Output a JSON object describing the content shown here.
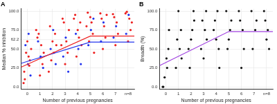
{
  "chart_data": [
    {
      "type": "scatter",
      "title": "A",
      "x_label": "Number of previous pregnancies",
      "y_label": "Median % inhibition",
      "xlim": [
        -0.5,
        8.5
      ],
      "ylim": [
        -3,
        103
      ],
      "xticks": [
        0,
        1,
        2,
        3,
        4,
        5,
        6,
        7,
        {
          "value": 8,
          "label": "n=8"
        }
      ],
      "yticks": [
        {
          "value": 0,
          "label": "0.0"
        },
        {
          "value": 25,
          "label": "25.0"
        },
        {
          "value": 50,
          "label": "50.0"
        },
        62.2,
        {
          "value": 75,
          "label": "75.0"
        },
        {
          "value": 100,
          "label": "100.0"
        }
      ],
      "grid": true,
      "series": [
        {
          "type": "scatter",
          "marker": "circle",
          "color": "#ee2222",
          "x": [
            -0.2,
            0.1,
            0.2,
            -0.1,
            0,
            0.15,
            -0.25,
            0.3,
            -0.3,
            0.8,
            1.1,
            1.2,
            0.9,
            1.0,
            1.3,
            0.7,
            1.8,
            2.1,
            2.2,
            1.9,
            2.0,
            2.3,
            1.7,
            2.8,
            3.1,
            3.2,
            2.9,
            3.0,
            3.3,
            2.7,
            3.8,
            4.1,
            4.2,
            3.9,
            4.0,
            4.3,
            3.7,
            4.8,
            5.1,
            5.2,
            4.9,
            5.0,
            5.3,
            4.7,
            5.8,
            6.1,
            6.2,
            5.9,
            6.0,
            6.3,
            6.8,
            7.1,
            7.2,
            6.9,
            7.0,
            7.8,
            8.1,
            8.2,
            7.9,
            8.0,
            8.3
          ],
          "values": [
            10,
            40,
            35,
            45,
            60,
            28,
            20,
            50,
            5,
            65,
            55,
            30,
            70,
            15,
            45,
            75,
            80,
            45,
            70,
            35,
            60,
            55,
            20,
            90,
            60,
            45,
            85,
            30,
            75,
            55,
            95,
            65,
            85,
            40,
            75,
            55,
            90,
            98,
            85,
            70,
            60,
            92,
            45,
            80,
            97,
            80,
            65,
            90,
            50,
            95,
            96,
            85,
            70,
            92,
            55,
            97,
            90,
            75,
            99,
            60,
            85
          ]
        },
        {
          "type": "scatter",
          "marker": "circle",
          "color": "#2233ee",
          "x": [
            0.05,
            -0.15,
            0.25,
            0.1,
            1.05,
            0.85,
            1.25,
            2.05,
            1.85,
            2.25,
            3.05,
            2.85,
            3.25,
            4.05,
            3.85,
            4.25,
            5.05,
            4.85,
            5.25,
            6.05,
            5.85,
            7.05,
            6.85,
            8.05,
            7.85
          ],
          "values": [
            30,
            55,
            15,
            70,
            40,
            60,
            25,
            75,
            50,
            30,
            65,
            40,
            20,
            50,
            70,
            30,
            75,
            55,
            90,
            85,
            60,
            80,
            65,
            95,
            70
          ]
        },
        {
          "type": "line",
          "line_style": "solid",
          "color": "#ee2222",
          "x": [
            -0.5,
            5,
            8.5
          ],
          "values": [
            26,
            67,
            67
          ]
        },
        {
          "type": "line",
          "line_style": "solid",
          "color": "#2233ee",
          "x": [
            -0.5,
            5,
            8.5
          ],
          "values": [
            31,
            59,
            59
          ]
        }
      ]
    },
    {
      "type": "scatter",
      "title": "B",
      "x_label": "Number of previous pregnancies",
      "y_label": "Breadth (%)",
      "xlim": [
        -0.5,
        8.5
      ],
      "ylim": [
        -3,
        103
      ],
      "xticks": [
        0,
        1,
        2,
        3,
        4,
        5,
        6,
        7,
        {
          "value": 8,
          "label": "n=8"
        }
      ],
      "yticks": [
        {
          "value": 0,
          "label": "0.0"
        },
        {
          "value": 25,
          "label": "25.0"
        },
        {
          "value": 50,
          "label": "50.0"
        },
        {
          "value": 75,
          "label": "75.0"
        },
        {
          "value": 100,
          "label": "100.0"
        }
      ],
      "grid": true,
      "series": [
        {
          "type": "scatter",
          "marker": "circle",
          "color": "#111111",
          "x": [
            -0.2,
            0.1,
            0.2,
            -0.1,
            0.05,
            0.25,
            -0.25,
            0.8,
            1.1,
            1.2,
            0.9,
            1.0,
            1.25,
            1.8,
            2.1,
            2.2,
            1.9,
            2.0,
            2.25,
            2.8,
            3.1,
            3.2,
            2.9,
            3.0,
            3.25,
            3.8,
            4.1,
            4.2,
            3.9,
            4.0,
            4.25,
            4.8,
            5.1,
            5.2,
            4.9,
            5.0,
            5.8,
            6.1,
            6.2,
            5.9,
            6.0,
            6.8,
            7.1,
            7.2,
            6.9,
            7.8,
            8.1,
            8.2,
            7.9,
            8.0
          ],
          "values": [
            0,
            25,
            50,
            12.5,
            37.5,
            75,
            0,
            25,
            50,
            75,
            62.5,
            100,
            37.5,
            50,
            75,
            100,
            25,
            62.5,
            87.5,
            50,
            75,
            100,
            87.5,
            37.5,
            62.5,
            75,
            100,
            50,
            87.5,
            62.5,
            25,
            100,
            75,
            87.5,
            50,
            62.5,
            100,
            75,
            50,
            87.5,
            25,
            100,
            75,
            87.5,
            50,
            100,
            75,
            50,
            87.5,
            62.5
          ]
        },
        {
          "type": "line",
          "line_style": "solid",
          "color": "#a040e0",
          "x": [
            -0.5,
            5,
            8.5
          ],
          "values": [
            28,
            73,
            73
          ]
        }
      ]
    }
  ]
}
